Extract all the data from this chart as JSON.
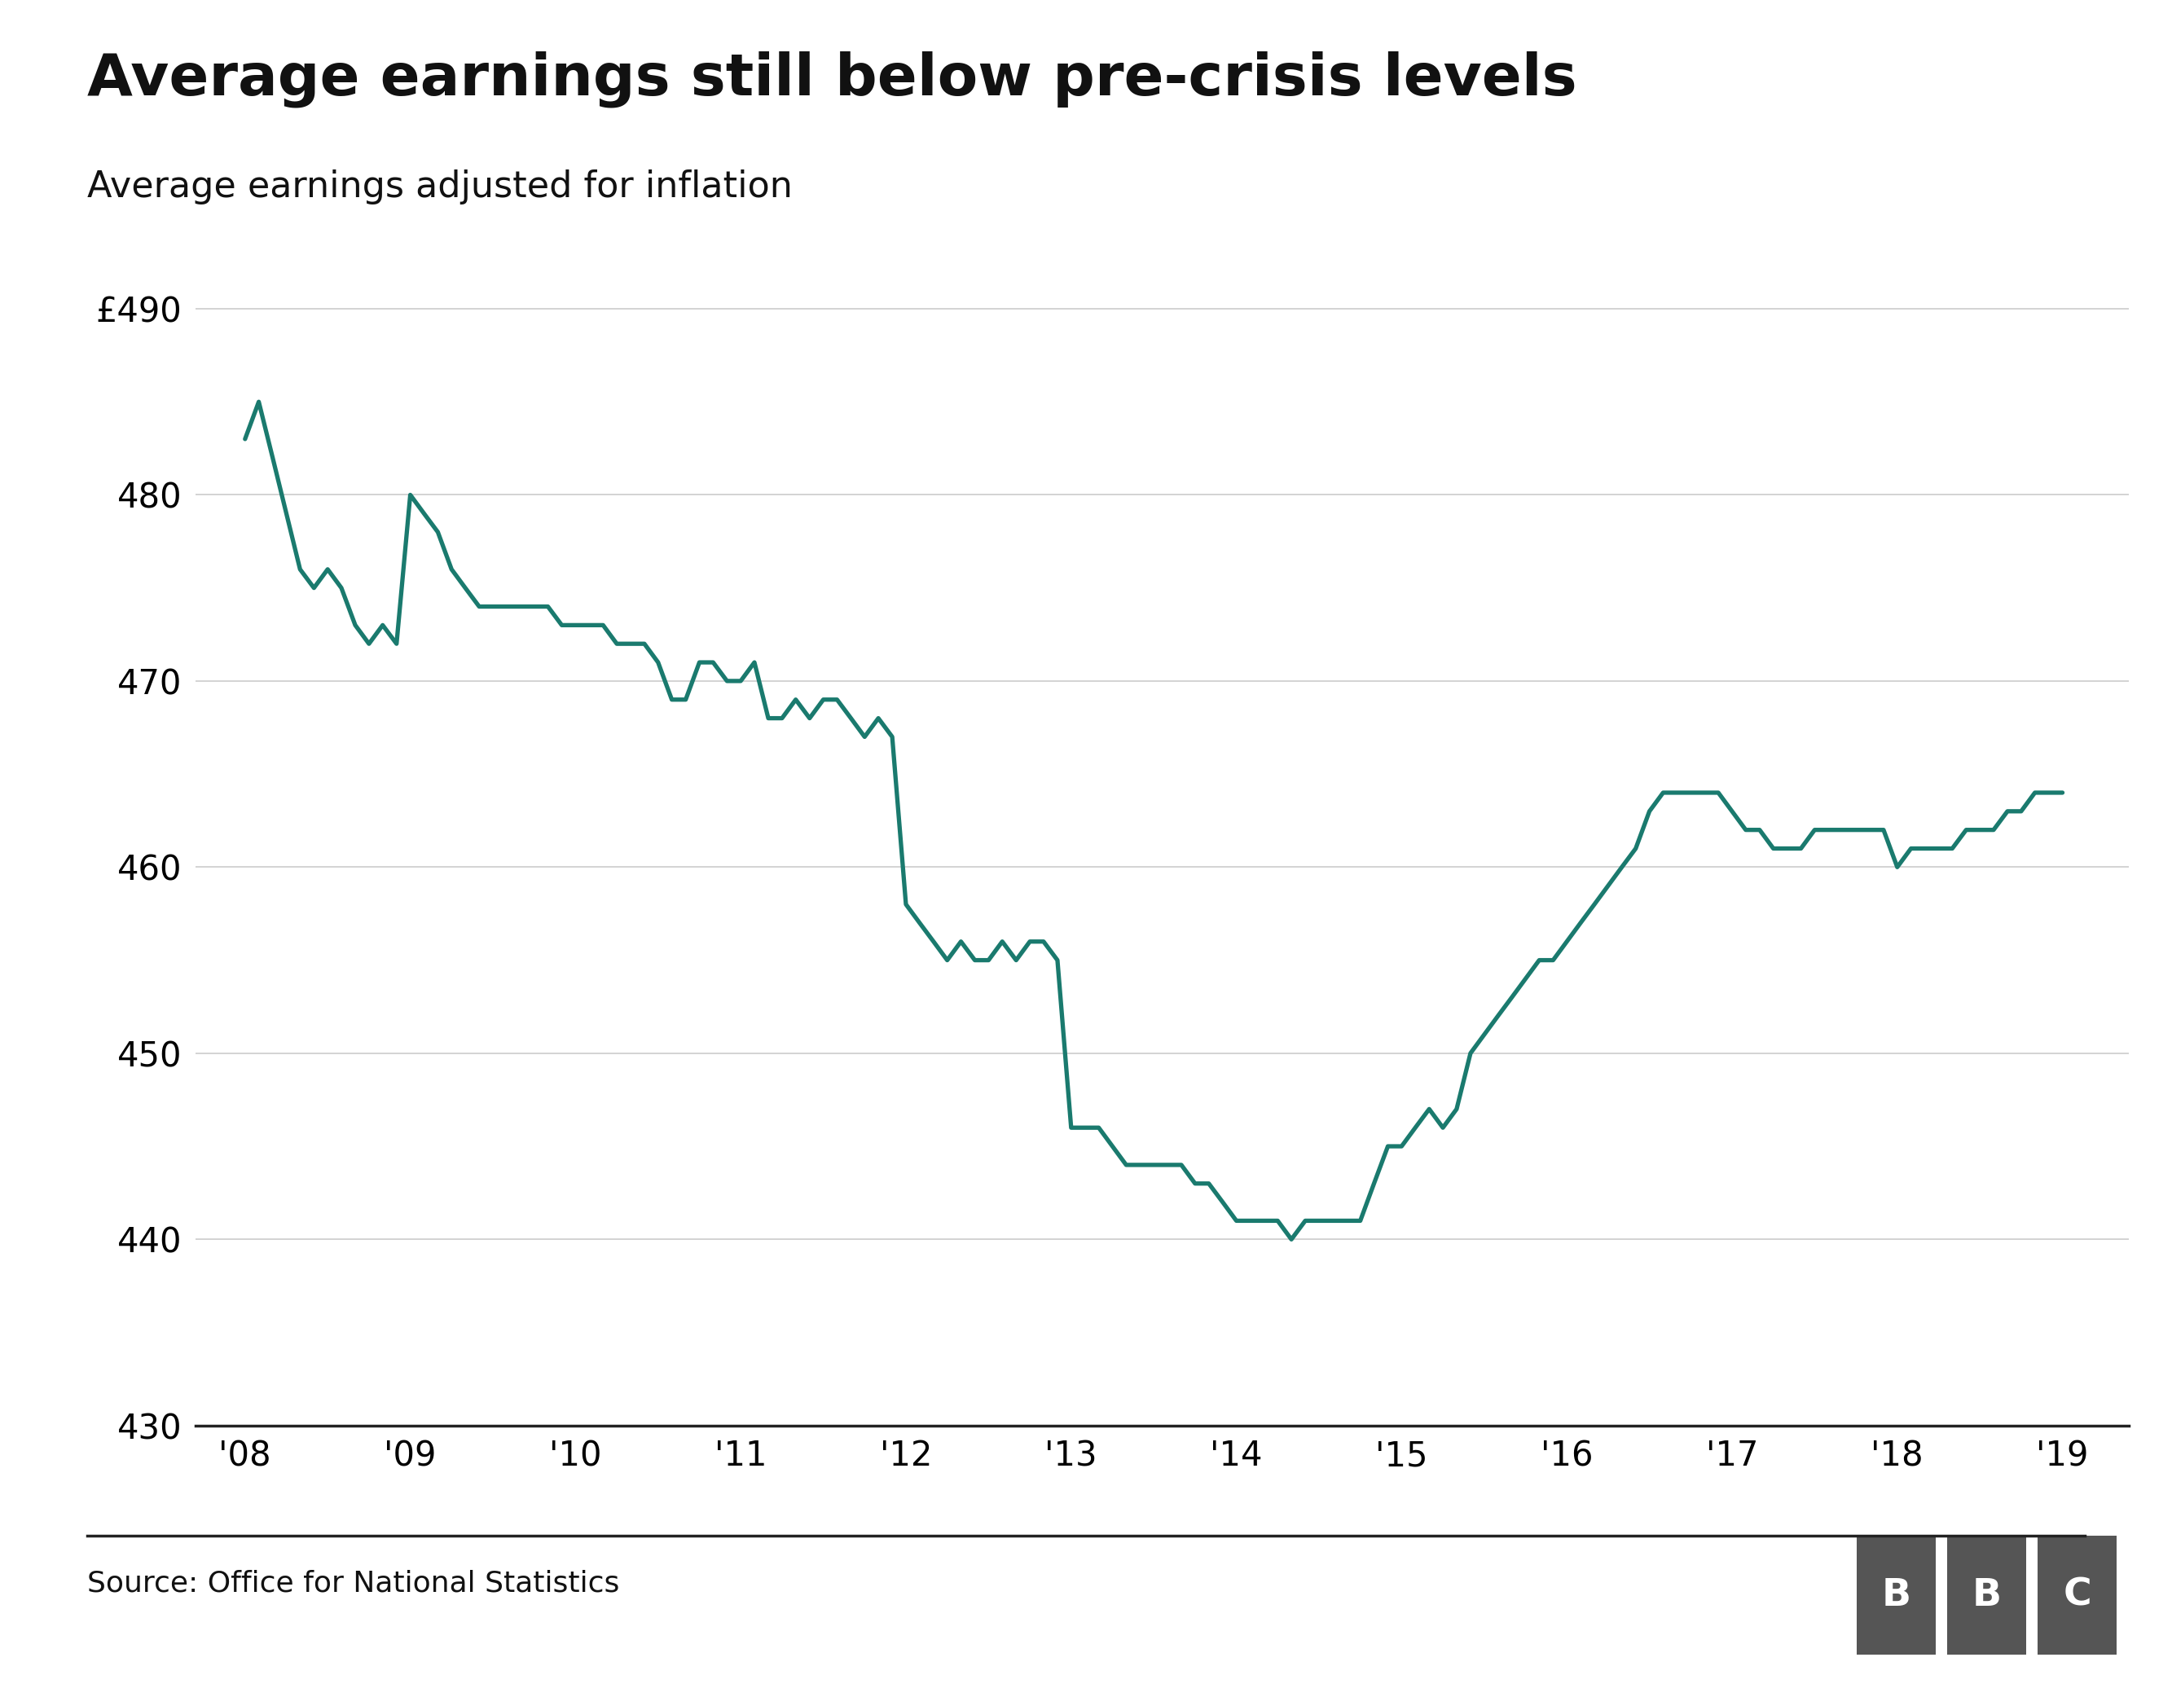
{
  "title": "Average earnings still below pre-crisis levels",
  "subtitle": "Average earnings adjusted for inflation",
  "source": "Source: Office for National Statistics",
  "line_color": "#1a7a6e",
  "background_color": "#ffffff",
  "title_fontsize": 52,
  "subtitle_fontsize": 32,
  "tick_fontsize": 30,
  "source_fontsize": 26,
  "ylim": [
    430,
    492
  ],
  "yticks": [
    430,
    440,
    450,
    460,
    470,
    480,
    490
  ],
  "ytick_labels": [
    "430",
    "440",
    "450",
    "460",
    "470",
    "480",
    "£490"
  ],
  "xtick_labels": [
    "'08",
    "'09",
    "'10",
    "'11",
    "'12",
    "'13",
    "'14",
    "'15",
    "'16",
    "'17",
    "'18",
    "'19"
  ],
  "x_values": [
    0,
    0.083,
    0.167,
    0.25,
    0.333,
    0.417,
    0.5,
    0.583,
    0.667,
    0.75,
    0.833,
    0.917,
    1,
    1.083,
    1.167,
    1.25,
    1.333,
    1.417,
    1.5,
    1.583,
    1.667,
    1.75,
    1.833,
    1.917,
    2,
    2.083,
    2.167,
    2.25,
    2.333,
    2.417,
    2.5,
    2.583,
    2.667,
    2.75,
    2.833,
    2.917,
    3,
    3.083,
    3.167,
    3.25,
    3.333,
    3.417,
    3.5,
    3.583,
    3.667,
    3.75,
    3.833,
    3.917,
    4,
    4.083,
    4.167,
    4.25,
    4.333,
    4.417,
    4.5,
    4.583,
    4.667,
    4.75,
    4.833,
    4.917,
    5,
    5.083,
    5.167,
    5.25,
    5.333,
    5.417,
    5.5,
    5.583,
    5.667,
    5.75,
    5.833,
    5.917,
    6,
    6.083,
    6.167,
    6.25,
    6.333,
    6.417,
    6.5,
    6.583,
    6.667,
    6.75,
    6.833,
    6.917,
    7,
    7.083,
    7.167,
    7.25,
    7.333,
    7.417,
    7.5,
    7.583,
    7.667,
    7.75,
    7.833,
    7.917,
    8,
    8.083,
    8.167,
    8.25,
    8.333,
    8.417,
    8.5,
    8.583,
    8.667,
    8.75,
    8.833,
    8.917,
    9,
    9.083,
    9.167,
    9.25,
    9.333,
    9.417,
    9.5,
    9.583,
    9.667,
    9.75,
    9.833,
    9.917,
    10,
    10.083,
    10.167,
    10.25,
    10.333,
    10.417,
    10.5,
    10.583,
    10.667,
    10.75,
    10.833,
    10.917,
    11
  ],
  "y_values": [
    483,
    485,
    482,
    479,
    476,
    475,
    476,
    475,
    473,
    472,
    473,
    472,
    480,
    479,
    478,
    476,
    475,
    474,
    474,
    474,
    474,
    474,
    474,
    473,
    473,
    473,
    473,
    472,
    472,
    472,
    471,
    469,
    469,
    471,
    471,
    470,
    470,
    471,
    468,
    468,
    469,
    468,
    469,
    469,
    468,
    467,
    468,
    467,
    458,
    457,
    456,
    455,
    456,
    455,
    455,
    456,
    455,
    456,
    456,
    455,
    446,
    446,
    446,
    445,
    444,
    444,
    444,
    444,
    444,
    443,
    443,
    442,
    441,
    441,
    441,
    441,
    440,
    441,
    441,
    441,
    441,
    441,
    443,
    445,
    445,
    446,
    447,
    446,
    447,
    450,
    451,
    452,
    453,
    454,
    455,
    455,
    456,
    457,
    458,
    459,
    460,
    461,
    463,
    464,
    464,
    464,
    464,
    464,
    463,
    462,
    462,
    461,
    461,
    461,
    462,
    462,
    462,
    462,
    462,
    462,
    460,
    461,
    461,
    461,
    461,
    462,
    462,
    462,
    463,
    463,
    464,
    464,
    464
  ],
  "bbc_color": "#555555"
}
